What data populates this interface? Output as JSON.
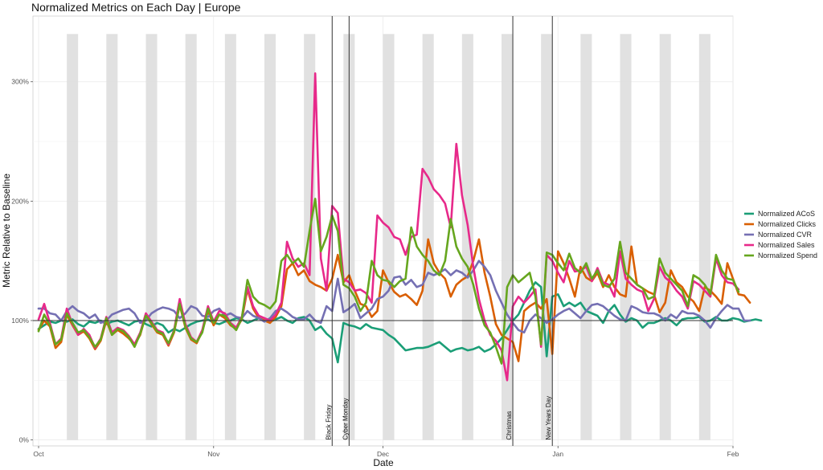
{
  "chart_data": {
    "type": "line",
    "title": "Normalized Metrics on Each Day | Europe",
    "xlabel": "Date",
    "ylabel": "Metric Relative to Baseline",
    "x_range": [
      "2023-09-30",
      "2024-02-01"
    ],
    "ylim": [
      -0.05,
      3.55
    ],
    "y_ticks": [
      {
        "value": 0,
        "label": "0%"
      },
      {
        "value": 1,
        "label": "100%"
      },
      {
        "value": 2,
        "label": "200%"
      },
      {
        "value": 3,
        "label": "300%"
      }
    ],
    "x_ticks": [
      {
        "date": "2023-10-01",
        "label": "Oct"
      },
      {
        "date": "2023-11-01",
        "label": "Nov"
      },
      {
        "date": "2023-12-01",
        "label": "Dec"
      },
      {
        "date": "2024-01-01",
        "label": "Jan"
      },
      {
        "date": "2024-02-01",
        "label": "Feb"
      }
    ],
    "reference_line": 1,
    "grid": true,
    "legend_position": "right",
    "weekend_shading": [
      "2023-10-06",
      "2023-10-13",
      "2023-10-20",
      "2023-10-27",
      "2023-11-03",
      "2023-11-10",
      "2023-11-17",
      "2023-11-24",
      "2023-12-01",
      "2023-12-08",
      "2023-12-15",
      "2023-12-22",
      "2023-12-29",
      "2024-01-05",
      "2024-01-12",
      "2024-01-19",
      "2024-01-26"
    ],
    "events": [
      {
        "date": "2023-11-22",
        "label": "Black Friday"
      },
      {
        "date": "2023-11-25",
        "label": "Cyber Monday"
      },
      {
        "date": "2023-12-24",
        "label": "Christmas"
      },
      {
        "date": "2023-12-31",
        "label": "New Years Day"
      }
    ],
    "start_date": "2023-10-01",
    "series": [
      {
        "name": "Normalized ACoS",
        "color": "#1b9e77",
        "values": [
          0.93,
          0.96,
          0.99,
          0.98,
          1.0,
          0.99,
          1.01,
          0.97,
          0.95,
          0.99,
          0.98,
          1.0,
          0.97,
          0.99,
          1.0,
          0.98,
          0.96,
          0.99,
          1.0,
          0.97,
          0.95,
          0.98,
          0.96,
          0.9,
          0.93,
          0.91,
          0.94,
          0.97,
          0.99,
          1.0,
          1.01,
          0.98,
          0.97,
          0.99,
          1.0,
          1.02,
          1.01,
          0.98,
          1.0,
          1.02,
          1.0,
          0.99,
          1.01,
          1.03,
          1.0,
          0.98,
          1.02,
          1.03,
          1.0,
          0.92,
          0.95,
          0.89,
          0.85,
          0.65,
          0.98,
          0.96,
          0.95,
          0.93,
          0.97,
          0.94,
          0.93,
          0.92,
          0.88,
          0.85,
          0.8,
          0.75,
          0.76,
          0.77,
          0.77,
          0.78,
          0.8,
          0.82,
          0.78,
          0.74,
          0.76,
          0.77,
          0.75,
          0.76,
          0.78,
          0.74,
          0.76,
          0.8,
          0.85,
          0.92,
          1.0,
          1.05,
          1.15,
          1.25,
          1.32,
          1.28,
          0.7,
          1.2,
          1.22,
          1.12,
          1.15,
          1.12,
          1.15,
          1.08,
          1.06,
          1.04,
          0.98,
          1.08,
          1.13,
          1.05,
          0.99,
          1.02,
          1.0,
          0.94,
          0.98,
          0.98,
          1.0,
          1.02,
          1.0,
          0.96,
          1.01,
          1.02,
          1.02,
          1.03,
          0.99,
          1.0,
          1.03,
          1.0,
          1.0,
          1.02,
          1.01,
          0.99,
          1.0,
          1.01,
          1.0
        ]
      },
      {
        "name": "Normalized Clicks",
        "color": "#d95f02",
        "values": [
          0.92,
          1.0,
          0.95,
          0.77,
          0.82,
          1.05,
          0.96,
          0.88,
          0.91,
          0.85,
          0.76,
          0.83,
          1.0,
          0.88,
          0.92,
          0.89,
          0.85,
          0.8,
          0.88,
          1.05,
          0.97,
          0.9,
          0.88,
          0.79,
          0.9,
          1.13,
          0.94,
          0.84,
          0.81,
          0.91,
          1.08,
          0.96,
          1.05,
          1.02,
          0.96,
          0.93,
          1.01,
          1.26,
          1.1,
          1.02,
          1.0,
          0.98,
          1.03,
          1.12,
          1.43,
          1.48,
          1.38,
          1.42,
          1.33,
          1.3,
          1.28,
          1.25,
          1.35,
          1.55,
          1.32,
          1.38,
          1.25,
          1.14,
          1.12,
          1.03,
          1.08,
          1.42,
          1.32,
          1.24,
          1.2,
          1.22,
          1.18,
          1.13,
          1.25,
          1.68,
          1.48,
          1.4,
          1.35,
          1.2,
          1.3,
          1.34,
          1.37,
          1.5,
          1.68,
          1.4,
          1.2,
          0.97,
          0.88,
          0.85,
          0.82,
          0.66,
          1.08,
          1.12,
          1.15,
          1.1,
          1.18,
          0.72,
          1.58,
          1.48,
          1.35,
          1.2,
          1.45,
          1.36,
          1.33,
          1.4,
          1.28,
          1.38,
          1.28,
          1.22,
          1.2,
          1.62,
          1.3,
          1.27,
          1.24,
          1.22,
          1.07,
          1.15,
          1.42,
          1.32,
          1.28,
          1.2,
          1.16,
          1.08,
          1.28,
          1.25,
          1.2,
          1.14,
          1.48,
          1.35,
          1.22,
          1.21,
          1.15
        ]
      },
      {
        "name": "Normalized CVR",
        "color": "#7570b3",
        "values": [
          1.1,
          1.1,
          1.06,
          1.05,
          1.0,
          1.08,
          1.12,
          1.08,
          1.06,
          1.02,
          1.05,
          0.98,
          1.0,
          1.05,
          1.07,
          1.09,
          1.1,
          1.06,
          0.98,
          1.0,
          1.06,
          1.09,
          1.11,
          1.1,
          1.08,
          1.02,
          1.06,
          1.12,
          1.1,
          1.04,
          1.03,
          1.08,
          1.1,
          1.04,
          1.06,
          1.03,
          1.02,
          1.08,
          1.04,
          1.02,
          0.99,
          1.02,
          1.08,
          1.1,
          1.07,
          1.03,
          1.01,
          1.01,
          1.05,
          1.0,
          0.98,
          1.12,
          1.08,
          1.35,
          1.07,
          1.1,
          1.14,
          1.02,
          1.06,
          1.1,
          1.18,
          1.2,
          1.25,
          1.36,
          1.37,
          1.3,
          1.34,
          1.28,
          1.3,
          1.4,
          1.38,
          1.4,
          1.43,
          1.38,
          1.42,
          1.4,
          1.36,
          1.42,
          1.5,
          1.45,
          1.38,
          1.25,
          1.15,
          1.05,
          0.98,
          0.92,
          0.9,
          1.0,
          1.05,
          1.02,
          0.98,
          1.01,
          1.05,
          1.08,
          1.1,
          1.06,
          1.02,
          1.08,
          1.13,
          1.14,
          1.12,
          1.08,
          1.04,
          1.01,
          1.0,
          1.12,
          1.1,
          1.07,
          1.06,
          1.06,
          1.04,
          1.0,
          1.05,
          1.02,
          1.08,
          1.06,
          1.06,
          1.04,
          1.0,
          0.94,
          1.02,
          1.08,
          1.13,
          1.1,
          1.1,
          1.0,
          1.0
        ]
      },
      {
        "name": "Normalized Sales",
        "color": "#e7298a",
        "values": [
          1.01,
          1.14,
          0.98,
          0.8,
          0.85,
          1.1,
          0.97,
          0.88,
          0.93,
          0.88,
          0.77,
          0.85,
          1.03,
          0.9,
          0.94,
          0.92,
          0.87,
          0.8,
          0.9,
          1.06,
          0.99,
          0.92,
          0.9,
          0.8,
          0.92,
          1.18,
          0.97,
          0.86,
          0.82,
          0.92,
          1.12,
          0.99,
          1.08,
          1.06,
          0.98,
          0.94,
          1.03,
          1.28,
          1.12,
          1.04,
          1.02,
          1.0,
          1.05,
          1.15,
          1.66,
          1.52,
          1.45,
          1.48,
          1.38,
          3.07,
          1.52,
          1.25,
          1.96,
          1.9,
          1.35,
          1.32,
          1.25,
          1.26,
          1.23,
          1.15,
          1.88,
          1.82,
          1.78,
          1.7,
          1.68,
          1.55,
          1.7,
          1.72,
          2.27,
          2.2,
          2.1,
          2.05,
          1.98,
          1.78,
          2.48,
          2.05,
          1.8,
          1.45,
          1.18,
          1.0,
          0.88,
          0.83,
          0.75,
          0.5,
          1.12,
          1.2,
          1.15,
          1.2,
          1.26,
          0.78,
          1.55,
          1.5,
          1.4,
          1.32,
          1.5,
          1.41,
          1.42,
          1.45,
          1.33,
          1.44,
          1.32,
          1.3,
          1.2,
          1.58,
          1.35,
          1.3,
          1.26,
          1.24,
          1.08,
          1.18,
          1.45,
          1.36,
          1.32,
          1.25,
          1.2,
          1.1,
          1.33,
          1.3,
          1.25,
          1.2,
          1.52,
          1.38,
          1.32,
          1.31,
          1.26
        ]
      },
      {
        "name": "Normalized Spend",
        "color": "#66a61e",
        "values": [
          0.91,
          1.05,
          0.96,
          0.8,
          0.84,
          1.06,
          0.98,
          0.9,
          0.92,
          0.86,
          0.78,
          0.84,
          1.02,
          0.88,
          0.93,
          0.91,
          0.86,
          0.78,
          0.89,
          1.04,
          0.98,
          0.91,
          0.89,
          0.81,
          0.91,
          1.14,
          0.95,
          0.85,
          0.82,
          0.9,
          1.1,
          0.98,
          1.05,
          1.04,
          0.97,
          0.92,
          1.02,
          1.34,
          1.2,
          1.15,
          1.13,
          1.1,
          1.16,
          1.5,
          1.55,
          1.48,
          1.52,
          1.45,
          1.75,
          2.02,
          1.58,
          1.7,
          1.88,
          1.75,
          1.3,
          1.27,
          1.2,
          1.08,
          1.15,
          1.5,
          1.38,
          1.34,
          1.33,
          1.28,
          1.33,
          1.35,
          1.78,
          1.62,
          1.55,
          1.5,
          1.42,
          1.38,
          1.5,
          1.85,
          1.62,
          1.52,
          1.45,
          1.3,
          1.1,
          0.96,
          0.9,
          0.78,
          0.64,
          1.28,
          1.38,
          1.32,
          1.36,
          1.4,
          1.2,
          0.8,
          1.57,
          1.55,
          1.48,
          1.42,
          1.56,
          1.44,
          1.4,
          1.48,
          1.35,
          1.42,
          1.3,
          1.28,
          1.35,
          1.66,
          1.4,
          1.35,
          1.3,
          1.27,
          1.18,
          1.2,
          1.52,
          1.4,
          1.35,
          1.3,
          1.25,
          1.12,
          1.38,
          1.35,
          1.3,
          1.22,
          1.55,
          1.42,
          1.35,
          1.34,
          1.24
        ]
      }
    ]
  }
}
